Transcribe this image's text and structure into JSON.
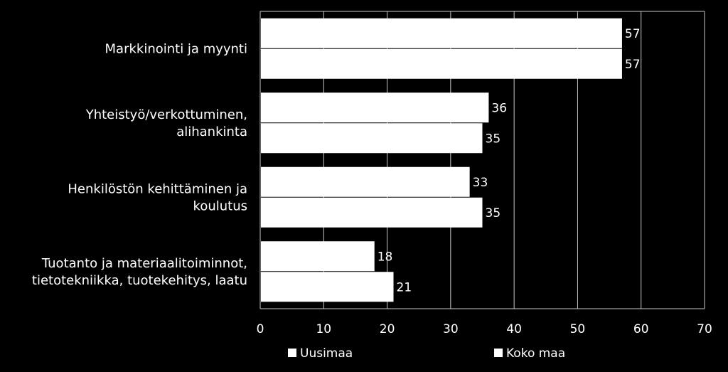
{
  "chart_data": {
    "type": "bar",
    "orientation": "horizontal",
    "categories": [
      [
        "Markkinointi ja myynti"
      ],
      [
        "Yhteistyö/verkottuminen,",
        "alihankinta"
      ],
      [
        "Henkilöstön kehittäminen ja",
        "koulutus"
      ],
      [
        "Tuotanto ja materiaalitoiminnot,",
        "tietotekniikka, tuotekehitys, laatu"
      ]
    ],
    "series": [
      {
        "name": "Uusimaa",
        "values": [
          57,
          36,
          33,
          18
        ],
        "color": "#ffffff"
      },
      {
        "name": "Koko maa",
        "values": [
          57,
          35,
          35,
          21
        ],
        "color": "#ffffff"
      }
    ],
    "xlim": [
      0,
      70
    ],
    "xticks": [
      "0",
      "10",
      "20",
      "30",
      "40",
      "50",
      "60",
      "70"
    ],
    "grid": true,
    "legend_position": "bottom",
    "background": "#000000"
  }
}
